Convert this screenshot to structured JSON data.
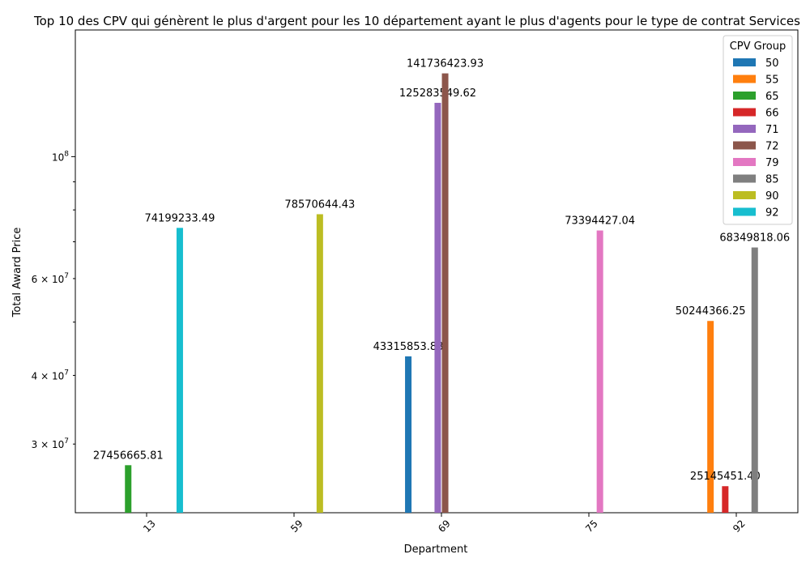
{
  "chart_data": {
    "type": "bar",
    "title": "Top 10 des CPV qui génèrent le plus d'argent pour les 10 département ayant le plus d'agents pour le type de contrat Services",
    "xlabel": "Department",
    "ylabel": "Total Award Price",
    "yscale": "log",
    "ylim": [
      22500000,
      170000000
    ],
    "categories": [
      "13",
      "59",
      "69",
      "75",
      "92"
    ],
    "legend": {
      "title": "CPV Group",
      "placement": "top-right"
    },
    "y_ticks": [
      {
        "value": 30000000,
        "label": "3 × 10^7",
        "major": false
      },
      {
        "value": 40000000,
        "label": "4 × 10^7",
        "major": false
      },
      {
        "value": 60000000,
        "label": "6 × 10^7",
        "major": false
      },
      {
        "value": 100000000,
        "label": "10^8",
        "major": true
      }
    ],
    "y_minor_ticks": [
      50000000,
      70000000,
      80000000,
      90000000
    ],
    "series": [
      {
        "name": "50",
        "color": "#1f77b4",
        "values": [
          null,
          null,
          43315853.83,
          null,
          null
        ],
        "labels": [
          null,
          null,
          "43315853.83",
          null,
          null
        ]
      },
      {
        "name": "55",
        "color": "#ff7f0e",
        "values": [
          null,
          null,
          null,
          null,
          50244366.25
        ],
        "labels": [
          null,
          null,
          null,
          null,
          "50244366.25"
        ]
      },
      {
        "name": "65",
        "color": "#2ca02c",
        "values": [
          27456665.81,
          null,
          null,
          null,
          null
        ],
        "labels": [
          "27456665.81",
          null,
          null,
          null,
          null
        ]
      },
      {
        "name": "66",
        "color": "#d62728",
        "values": [
          null,
          null,
          null,
          null,
          25145451.4
        ],
        "labels": [
          null,
          null,
          null,
          null,
          "25145451.40"
        ]
      },
      {
        "name": "71",
        "color": "#9467bd",
        "values": [
          null,
          null,
          125283549.62,
          null,
          null
        ],
        "labels": [
          null,
          null,
          "125283549.62",
          null,
          null
        ]
      },
      {
        "name": "72",
        "color": "#8c564b",
        "values": [
          null,
          null,
          141736423.93,
          null,
          null
        ],
        "labels": [
          null,
          null,
          "141736423.93",
          null,
          null
        ]
      },
      {
        "name": "79",
        "color": "#e377c2",
        "values": [
          null,
          null,
          null,
          73394427.04,
          null
        ],
        "labels": [
          null,
          null,
          null,
          "73394427.04",
          null
        ]
      },
      {
        "name": "85",
        "color": "#7f7f7f",
        "values": [
          null,
          null,
          null,
          null,
          68349818.06
        ],
        "labels": [
          null,
          null,
          null,
          null,
          "68349818.06"
        ]
      },
      {
        "name": "90",
        "color": "#bcbd22",
        "values": [
          null,
          78570644.43,
          null,
          null,
          null
        ],
        "labels": [
          null,
          "78570644.43",
          null,
          null,
          null
        ]
      },
      {
        "name": "92",
        "color": "#17becf",
        "values": [
          74199233.49,
          null,
          null,
          null,
          null
        ],
        "labels": [
          "74199233.49",
          null,
          null,
          null,
          null
        ]
      }
    ]
  }
}
